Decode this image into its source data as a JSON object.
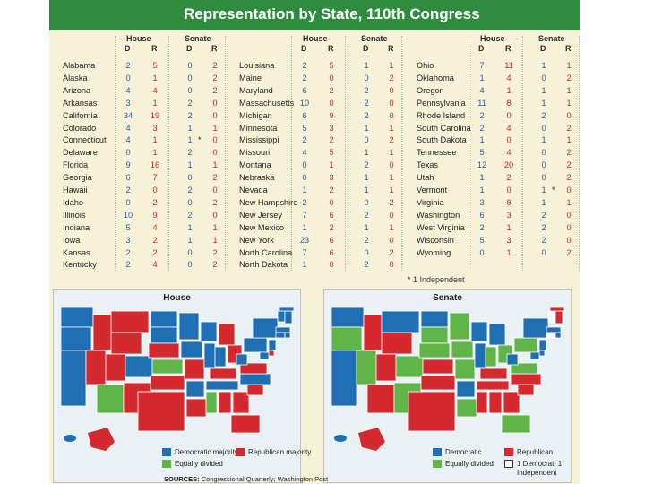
{
  "title": "Representation by State, 110th Congress",
  "headers": {
    "house": "House",
    "senate": "Senate",
    "d": "D",
    "r": "R"
  },
  "columns": [
    [
      {
        "state": "Alabama",
        "house_d": "2",
        "house_r": "5",
        "senate_d": "0",
        "senate_r": "2"
      },
      {
        "state": "Alaska",
        "house_d": "0",
        "house_r": "1",
        "senate_d": "0",
        "senate_r": "2"
      },
      {
        "state": "Arizona",
        "house_d": "4",
        "house_r": "4",
        "senate_d": "0",
        "senate_r": "2"
      },
      {
        "state": "Arkansas",
        "house_d": "3",
        "house_r": "1",
        "senate_d": "2",
        "senate_r": "0"
      },
      {
        "state": "California",
        "house_d": "34",
        "house_r": "19",
        "senate_d": "2",
        "senate_r": "0"
      },
      {
        "state": "Colorado",
        "house_d": "4",
        "house_r": "3",
        "senate_d": "1",
        "senate_r": "1"
      },
      {
        "state": "Connecticut",
        "house_d": "4",
        "house_r": "1",
        "senate_d": "1",
        "senate_r": "0",
        "senate_mark": "*"
      },
      {
        "state": "Delaware",
        "house_d": "0",
        "house_r": "1",
        "senate_d": "2",
        "senate_r": "0"
      },
      {
        "state": "Florida",
        "house_d": "9",
        "house_r": "16",
        "senate_d": "1",
        "senate_r": "1"
      },
      {
        "state": "Georgia",
        "house_d": "6",
        "house_r": "7",
        "senate_d": "0",
        "senate_r": "2"
      },
      {
        "state": "Hawaii",
        "house_d": "2",
        "house_r": "0",
        "senate_d": "2",
        "senate_r": "0"
      },
      {
        "state": "Idaho",
        "house_d": "0",
        "house_r": "2",
        "senate_d": "0",
        "senate_r": "2"
      },
      {
        "state": "Illinois",
        "house_d": "10",
        "house_r": "9",
        "senate_d": "2",
        "senate_r": "0"
      },
      {
        "state": "Indiana",
        "house_d": "5",
        "house_r": "4",
        "senate_d": "1",
        "senate_r": "1"
      },
      {
        "state": "Iowa",
        "house_d": "3",
        "house_r": "2",
        "senate_d": "1",
        "senate_r": "1"
      },
      {
        "state": "Kansas",
        "house_d": "2",
        "house_r": "2",
        "senate_d": "0",
        "senate_r": "2"
      },
      {
        "state": "Kentucky",
        "house_d": "2",
        "house_r": "4",
        "senate_d": "0",
        "senate_r": "2"
      }
    ],
    [
      {
        "state": "Louisiana",
        "house_d": "2",
        "house_r": "5",
        "senate_d": "1",
        "senate_r": "1"
      },
      {
        "state": "Maine",
        "house_d": "2",
        "house_r": "0",
        "senate_d": "0",
        "senate_r": "2"
      },
      {
        "state": "Maryland",
        "house_d": "6",
        "house_r": "2",
        "senate_d": "2",
        "senate_r": "0"
      },
      {
        "state": "Massachusetts",
        "house_d": "10",
        "house_r": "0",
        "senate_d": "2",
        "senate_r": "0"
      },
      {
        "state": "Michigan",
        "house_d": "6",
        "house_r": "9",
        "senate_d": "2",
        "senate_r": "0"
      },
      {
        "state": "Minnesota",
        "house_d": "5",
        "house_r": "3",
        "senate_d": "1",
        "senate_r": "1"
      },
      {
        "state": "Mississippi",
        "house_d": "2",
        "house_r": "2",
        "senate_d": "0",
        "senate_r": "2"
      },
      {
        "state": "Missouri",
        "house_d": "4",
        "house_r": "5",
        "senate_d": "1",
        "senate_r": "1"
      },
      {
        "state": "Montana",
        "house_d": "0",
        "house_r": "1",
        "senate_d": "2",
        "senate_r": "0"
      },
      {
        "state": "Nebraska",
        "house_d": "0",
        "house_r": "3",
        "senate_d": "1",
        "senate_r": "1"
      },
      {
        "state": "Nevada",
        "house_d": "1",
        "house_r": "2",
        "senate_d": "1",
        "senate_r": "1"
      },
      {
        "state": "New Hampshire",
        "house_d": "2",
        "house_r": "0",
        "senate_d": "0",
        "senate_r": "2"
      },
      {
        "state": "New Jersey",
        "house_d": "7",
        "house_r": "6",
        "senate_d": "2",
        "senate_r": "0"
      },
      {
        "state": "New Mexico",
        "house_d": "1",
        "house_r": "2",
        "senate_d": "1",
        "senate_r": "1"
      },
      {
        "state": "New York",
        "house_d": "23",
        "house_r": "6",
        "senate_d": "2",
        "senate_r": "0"
      },
      {
        "state": "North Carolina",
        "house_d": "7",
        "house_r": "6",
        "senate_d": "0",
        "senate_r": "2"
      },
      {
        "state": "North Dakota",
        "house_d": "1",
        "house_r": "0",
        "senate_d": "2",
        "senate_r": "0"
      }
    ],
    [
      {
        "state": "Ohio",
        "house_d": "7",
        "house_r": "11",
        "senate_d": "1",
        "senate_r": "1"
      },
      {
        "state": "Oklahoma",
        "house_d": "1",
        "house_r": "4",
        "senate_d": "0",
        "senate_r": "2"
      },
      {
        "state": "Oregon",
        "house_d": "4",
        "house_r": "1",
        "senate_d": "1",
        "senate_r": "1"
      },
      {
        "state": "Pennsylvania",
        "house_d": "11",
        "house_r": "8",
        "senate_d": "1",
        "senate_r": "1"
      },
      {
        "state": "Rhode Island",
        "house_d": "2",
        "house_r": "0",
        "senate_d": "2",
        "senate_r": "0"
      },
      {
        "state": "South Carolina",
        "house_d": "2",
        "house_r": "4",
        "senate_d": "0",
        "senate_r": "2"
      },
      {
        "state": "South Dakota",
        "house_d": "1",
        "house_r": "0",
        "senate_d": "1",
        "senate_r": "1"
      },
      {
        "state": "Tennessee",
        "house_d": "5",
        "house_r": "4",
        "senate_d": "0",
        "senate_r": "2"
      },
      {
        "state": "Texas",
        "house_d": "12",
        "house_r": "20",
        "senate_d": "0",
        "senate_r": "2"
      },
      {
        "state": "Utah",
        "house_d": "1",
        "house_r": "2",
        "senate_d": "0",
        "senate_r": "2"
      },
      {
        "state": "Vermont",
        "house_d": "1",
        "house_r": "0",
        "senate_d": "1",
        "senate_r": "0",
        "senate_mark": "*"
      },
      {
        "state": "Virginia",
        "house_d": "3",
        "house_r": "8",
        "senate_d": "1",
        "senate_r": "1"
      },
      {
        "state": "Washington",
        "house_d": "6",
        "house_r": "3",
        "senate_d": "2",
        "senate_r": "0"
      },
      {
        "state": "West Virginia",
        "house_d": "2",
        "house_r": "1",
        "senate_d": "2",
        "senate_r": "0"
      },
      {
        "state": "Wisconsin",
        "house_d": "5",
        "house_r": "3",
        "senate_d": "2",
        "senate_r": "0"
      },
      {
        "state": "Wyoming",
        "house_d": "0",
        "house_r": "1",
        "senate_d": "0",
        "senate_r": "2"
      }
    ]
  ],
  "footnote": "* 1 Independent",
  "maps": [
    {
      "title": "House",
      "legend": {
        "democratic": "Democratic majority",
        "republican": "Republican majority",
        "equal": "Equally divided"
      }
    },
    {
      "title": "Senate",
      "legend": {
        "democratic": "Democratic",
        "republican": "Republican",
        "equal": "Equally divided",
        "independent": "1 Democrat, 1 Independent"
      }
    }
  ],
  "sources": {
    "label": "SOURCES:",
    "text": "Congressional Quarterly; Washington Post"
  },
  "colors": {
    "democratic": "#1f6fb4",
    "republican": "#d42a2f",
    "equal": "#5fb548",
    "independent": "#ffffff",
    "header_green": "#2f8c3f",
    "paper": "#f7f1d8"
  }
}
